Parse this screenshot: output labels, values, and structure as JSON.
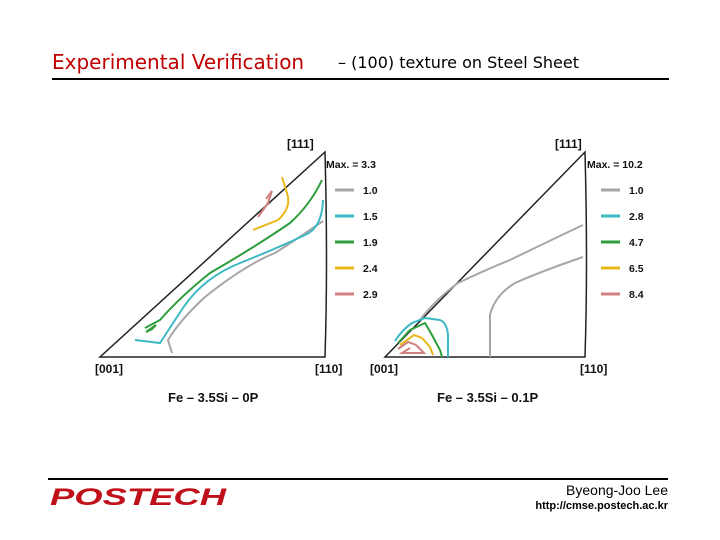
{
  "header": {
    "title": "Experimental Verification",
    "subtitle": "– (100) texture on Steel Sheet"
  },
  "figure": {
    "panels": [
      {
        "corner_top": "[111]",
        "corner_left": "[001]",
        "corner_right": "[110]",
        "max_label": "Max. = 3.3",
        "caption": "Fe – 3.5Si – 0P",
        "legend": [
          {
            "value": "1.0",
            "color": "#a6a6a6"
          },
          {
            "value": "1.5",
            "color": "#3cb8c4"
          },
          {
            "value": "1.9",
            "color": "#2e9e3c"
          },
          {
            "value": "2.4",
            "color": "#e8b81a"
          },
          {
            "value": "2.9",
            "color": "#d08080"
          }
        ]
      },
      {
        "corner_top": "[111]",
        "corner_left": "[001]",
        "corner_right": "[110]",
        "max_label": "Max. = 10.2",
        "caption": "Fe – 3.5Si – 0.1P",
        "legend": [
          {
            "value": "1.0",
            "color": "#a6a6a6"
          },
          {
            "value": "2.8",
            "color": "#3cb8c4"
          },
          {
            "value": "4.7",
            "color": "#2e9e3c"
          },
          {
            "value": "6.5",
            "color": "#e8b81a"
          },
          {
            "value": "8.4",
            "color": "#d08080"
          }
        ]
      }
    ]
  },
  "footer": {
    "logo_text": "POSTECH",
    "author": "Byeong-Joo Lee",
    "url": "http://cmse.postech.ac.kr"
  }
}
